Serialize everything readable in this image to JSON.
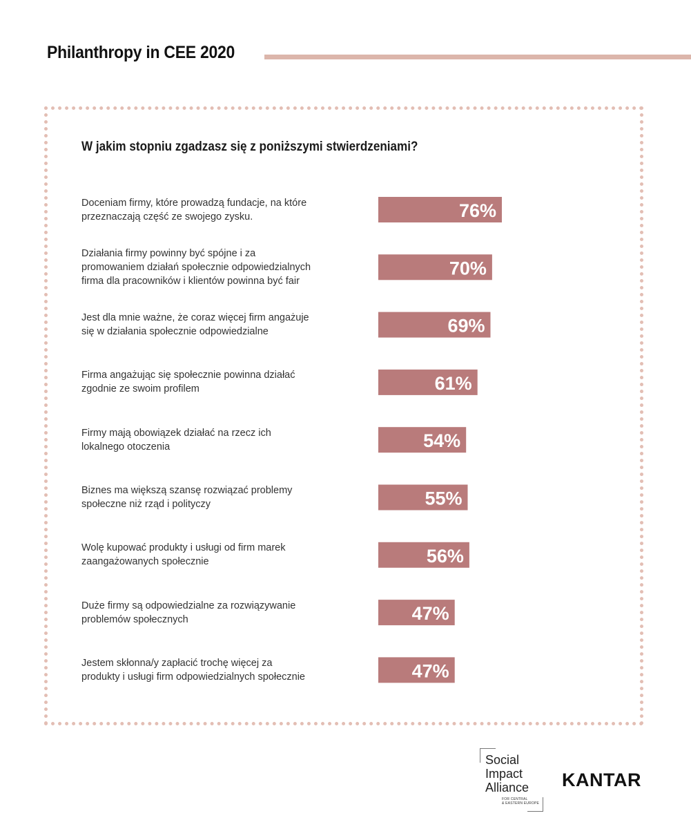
{
  "header": {
    "title": "Philanthropy in CEE 2020"
  },
  "colors": {
    "bar": "#b97b7b",
    "rule": "#dcb6ab",
    "frame_dots": "#e3beb4"
  },
  "chart_data": {
    "type": "bar",
    "orientation": "horizontal",
    "title": "W jakim stopniu zgadzasz się z poniższymi stwierdzeniami?",
    "unit": "%",
    "xlim": [
      0,
      100
    ],
    "grid": false,
    "categories": [
      "Doceniam firmy, które prowadzą fundacje, na które przeznaczają część ze swojego zysku.",
      "Działania firmy powinny być spójne i za promowaniem działań społecznie odpowiedzialnych firma dla pracowników i klientów powinna być fair",
      "Jest dla mnie ważne, że coraz więcej firm angażuje się w działania społecznie odpowiedzialne",
      "Firma angażując się społecznie powinna działać zgodnie ze swoim profilem",
      "Firmy mają obowiązek działać na rzecz ich lokalnego otoczenia",
      "Biznes ma większą szansę rozwiązać problemy społeczne niż rząd i polityczy",
      "Wolę kupować produkty i usługi od firm marek zaangażowanych społecznie",
      "Duże firmy są odpowiedzialne za rozwiązywanie problemów społecznych",
      "Jestem skłonna/y zapłacić trochę więcej za produkty i usługi firm odpowiedzialnych społecznie"
    ],
    "label_lines": [
      [
        "Doceniam firmy, które prowadzą fundacje, na które",
        "przeznaczają część ze swojego zysku."
      ],
      [
        "Działania firmy powinny być spójne i za",
        "promowaniem działań społecznie odpowiedzialnych",
        "firma dla pracowników i klientów powinna być fair"
      ],
      [
        "Jest dla mnie ważne, że coraz więcej firm angażuje",
        "się w działania społecznie odpowiedzialne"
      ],
      [
        "Firma angażując się społecznie powinna działać",
        "zgodnie ze swoim profilem"
      ],
      [
        "Firmy mają obowiązek działać na rzecz ich",
        "lokalnego otoczenia"
      ],
      [
        "Biznes ma większą szansę rozwiązać problemy",
        "społeczne niż rząd i polityczy"
      ],
      [
        "Wolę kupować produkty i usługi od firm marek",
        "zaangażowanych społecznie"
      ],
      [
        "Duże firmy są odpowiedzialne za rozwiązywanie",
        "problemów społecznych"
      ],
      [
        "Jestem skłonna/y zapłacić trochę więcej za",
        "produkty i usługi firm odpowiedzialnych społecznie"
      ]
    ],
    "values": [
      76,
      70,
      69,
      61,
      54,
      55,
      56,
      47,
      47
    ],
    "value_labels": [
      "76%",
      "70%",
      "69%",
      "61%",
      "54%",
      "55%",
      "56%",
      "47%",
      "47%"
    ]
  },
  "logos": {
    "sia": {
      "lines": [
        "Social",
        "Impact",
        "Alliance"
      ],
      "sub": [
        "FOR CENTRAL",
        "& EASTERN EUROPE"
      ]
    },
    "kantar": "KANTAR"
  }
}
